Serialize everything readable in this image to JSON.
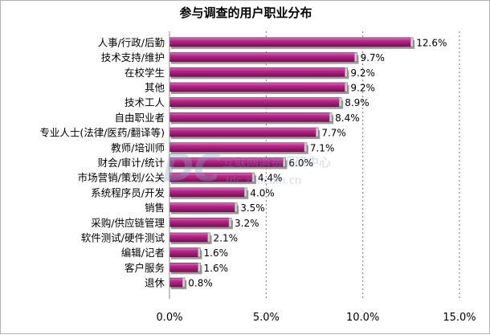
{
  "chart_data": {
    "type": "bar",
    "orientation": "horizontal",
    "title": "参与调查的用户职业分布",
    "categories": [
      "人事/行政/后勤",
      "技术支持/维护",
      "在校学生",
      "其他",
      "技术工人",
      "自由职业者",
      "专业人士(法律/医药/翻译等)",
      "教师/培训师",
      "财会/审计/统计",
      "市场营销/策划/公关",
      "系统程序员/开发",
      "销售",
      "采购/供应链管理",
      "软件测试/硬件测试",
      "编辑/记者",
      "客户服务",
      "退休"
    ],
    "values": [
      12.6,
      9.7,
      9.2,
      9.2,
      8.9,
      8.4,
      7.7,
      7.1,
      6.0,
      4.4,
      4.0,
      3.5,
      3.2,
      2.1,
      1.6,
      1.6,
      0.8
    ],
    "value_labels": [
      "12.6%",
      "9.7%",
      "9.2%",
      "9.2%",
      "8.9%",
      "8.4%",
      "7.7%",
      "7.1%",
      "6.0%",
      "4.4%",
      "4.0%",
      "3.5%",
      "3.2%",
      "2.1%",
      "1.6%",
      "1.6%",
      "0.8%"
    ],
    "xlim": [
      0,
      15
    ],
    "xticks": [
      0,
      5,
      10,
      15
    ],
    "xtick_labels": [
      "0.0%",
      "5.0%",
      "10.0%",
      "15.0%"
    ],
    "grid": "vertical dashed at 5.0%, 10.0%, 15.0%",
    "bar_color": "#9a1a6e",
    "bar_highlight": "#e070c0",
    "bar_shadow": "#9a9a9a"
  },
  "watermark": {
    "logo": "DC",
    "text": "互联网消费调研中心",
    "url": "zdc.zol.com.cn"
  }
}
